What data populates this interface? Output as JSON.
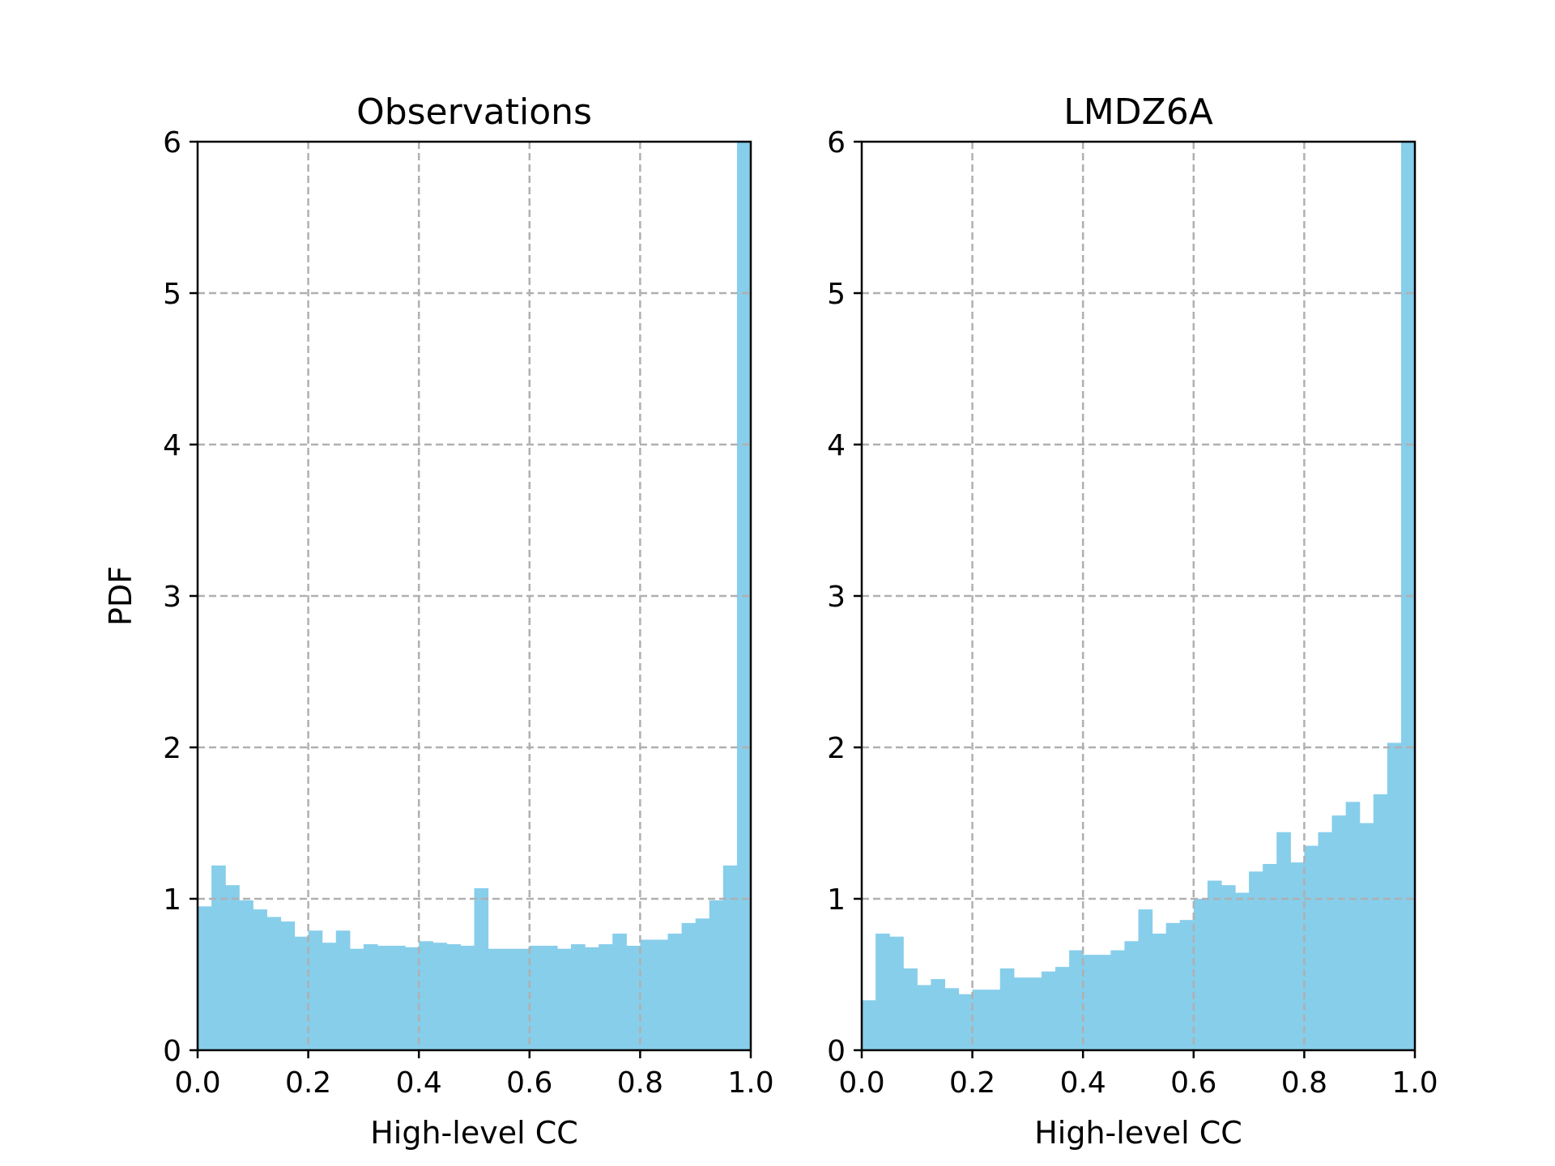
{
  "chart_data": [
    {
      "type": "bar",
      "title": "Observations",
      "xlabel": "High-level CC",
      "ylabel": "PDF",
      "xlim": [
        0,
        1
      ],
      "ylim": [
        0,
        6
      ],
      "xticks": [
        "0.0",
        "0.2",
        "0.4",
        "0.6",
        "0.8",
        "1.0"
      ],
      "yticks": [
        "0",
        "1",
        "2",
        "3",
        "4",
        "5",
        "6"
      ],
      "grid": true,
      "bin_width": 0.025,
      "x": [
        0.0,
        0.025,
        0.05,
        0.075,
        0.1,
        0.125,
        0.15,
        0.175,
        0.2,
        0.225,
        0.25,
        0.275,
        0.3,
        0.325,
        0.35,
        0.375,
        0.4,
        0.425,
        0.45,
        0.475,
        0.5,
        0.525,
        0.55,
        0.575,
        0.6,
        0.625,
        0.65,
        0.675,
        0.7,
        0.725,
        0.75,
        0.775,
        0.8,
        0.825,
        0.85,
        0.875,
        0.9,
        0.925,
        0.95,
        0.975
      ],
      "values": [
        0.95,
        1.22,
        1.09,
        0.99,
        0.93,
        0.88,
        0.85,
        0.75,
        0.79,
        0.71,
        0.79,
        0.67,
        0.7,
        0.69,
        0.69,
        0.68,
        0.72,
        0.71,
        0.7,
        0.69,
        1.07,
        0.67,
        0.67,
        0.67,
        0.69,
        0.69,
        0.67,
        0.7,
        0.68,
        0.7,
        0.77,
        0.69,
        0.73,
        0.73,
        0.77,
        0.84,
        0.87,
        0.99,
        1.22,
        6.0
      ],
      "color": "#87ceeb",
      "grid_color": "#b0b0b0"
    },
    {
      "type": "bar",
      "title": "LMDZ6A",
      "xlabel": "High-level CC",
      "ylabel": "",
      "xlim": [
        0,
        1
      ],
      "ylim": [
        0,
        6
      ],
      "xticks": [
        "0.0",
        "0.2",
        "0.4",
        "0.6",
        "0.8",
        "1.0"
      ],
      "yticks": [
        "0",
        "1",
        "2",
        "3",
        "4",
        "5",
        "6"
      ],
      "grid": true,
      "bin_width": 0.025,
      "x": [
        0.0,
        0.025,
        0.05,
        0.075,
        0.1,
        0.125,
        0.15,
        0.175,
        0.2,
        0.225,
        0.25,
        0.275,
        0.3,
        0.325,
        0.35,
        0.375,
        0.4,
        0.425,
        0.45,
        0.475,
        0.5,
        0.525,
        0.55,
        0.575,
        0.6,
        0.625,
        0.65,
        0.675,
        0.7,
        0.725,
        0.75,
        0.775,
        0.8,
        0.825,
        0.85,
        0.875,
        0.9,
        0.925,
        0.95,
        0.975
      ],
      "values": [
        0.33,
        0.77,
        0.75,
        0.54,
        0.43,
        0.47,
        0.41,
        0.37,
        0.4,
        0.4,
        0.54,
        0.48,
        0.48,
        0.52,
        0.55,
        0.66,
        0.63,
        0.63,
        0.66,
        0.72,
        0.93,
        0.77,
        0.84,
        0.86,
        1.0,
        1.12,
        1.09,
        1.04,
        1.18,
        1.23,
        1.44,
        1.24,
        1.35,
        1.44,
        1.55,
        1.64,
        1.5,
        1.69,
        2.03,
        6.0
      ],
      "color": "#87ceeb",
      "grid_color": "#b0b0b0"
    }
  ]
}
